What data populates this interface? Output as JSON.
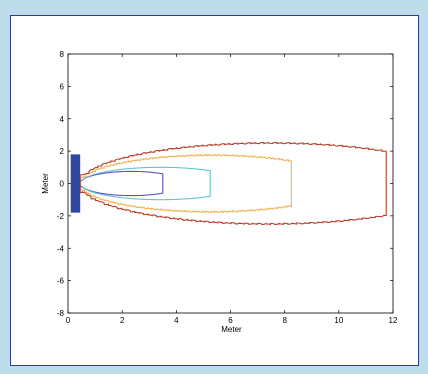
{
  "chart_data": {
    "type": "line",
    "title": "",
    "xlabel": "Meter",
    "ylabel": "Meter",
    "xlim": [
      0,
      12
    ],
    "ylim": [
      -8,
      8
    ],
    "xticks": [
      0,
      2,
      4,
      6,
      8,
      10,
      12
    ],
    "yticks": [
      -8,
      -6,
      -4,
      -2,
      0,
      2,
      4,
      6,
      8
    ],
    "source": {
      "type": "rectangle",
      "x": [
        0.1,
        0.45
      ],
      "y": [
        -1.8,
        1.8
      ],
      "color": "#2e47a3"
    },
    "series": [
      {
        "color": "#6b4fb8",
        "x": [
          0.45,
          3.5
        ],
        "half_height": 0.75,
        "rough": false
      },
      {
        "color": "#62c6d2",
        "x": [
          0.45,
          5.25
        ],
        "half_height": 1.0,
        "rough": false
      },
      {
        "color": "#f2b357",
        "x": [
          0.45,
          8.25
        ],
        "half_height": 1.75,
        "rough": true
      },
      {
        "color": "#b6422d",
        "x": [
          0.45,
          11.75
        ],
        "half_height": 2.5,
        "rough": true
      }
    ]
  }
}
